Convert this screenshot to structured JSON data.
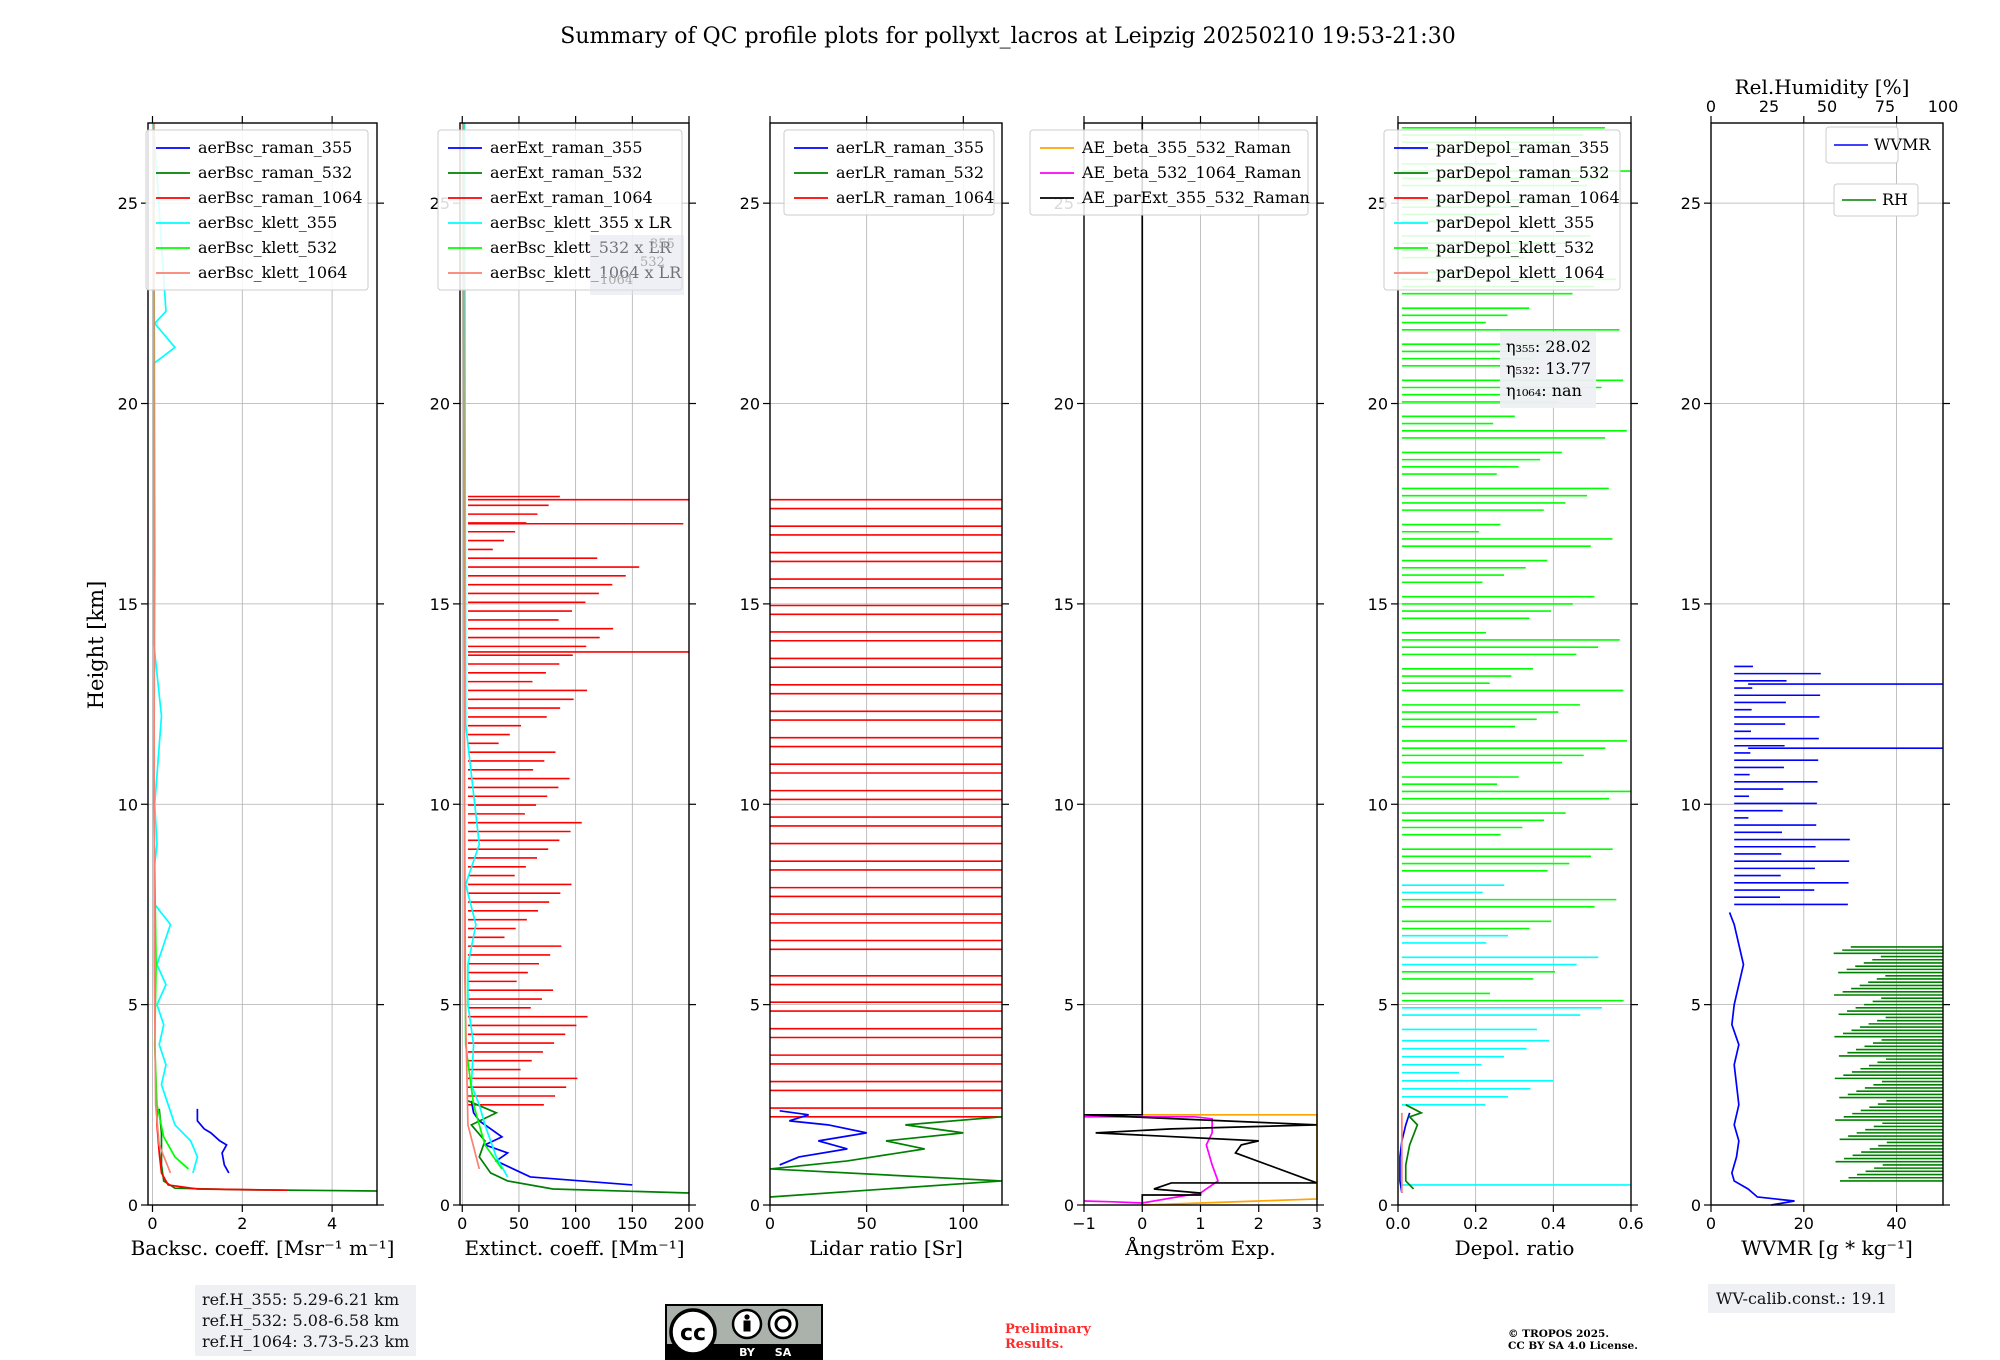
{
  "title": "Summary of QC profile plots for pollyxt_lacros at Leipzig 20250210 19:53-21:30",
  "colors": {
    "blue": "#0000ff",
    "green": "#008000",
    "red": "#ff0000",
    "cyan": "#00ffff",
    "lime": "#00ff00",
    "salmon": "#fa8072",
    "orange": "#ffa500",
    "magenta": "#ff00ff",
    "black": "#000000"
  },
  "chart_data": [
    {
      "type": "line",
      "id": "bsc",
      "xlabel": "Backsc. coeff. [Msr⁻¹ m⁻¹]",
      "ylabel": "Height [km]",
      "xlim": [
        -0.1,
        5
      ],
      "ylim": [
        0,
        27
      ],
      "xticks": [
        0,
        2,
        4
      ],
      "xtick_labels": [
        "0",
        "2",
        "4"
      ],
      "yticks": [
        0,
        5,
        10,
        15,
        20,
        25
      ],
      "ytick_labels": [
        "0",
        "5",
        "10",
        "15",
        "20",
        "25"
      ],
      "grid": true,
      "legend_position": "top-right",
      "series": [
        {
          "name": "aerBsc_raman_355",
          "color": "blue",
          "x": [
            1.7,
            1.6,
            1.55,
            1.65,
            1.5,
            1.3,
            1.15,
            1.0,
            1.0
          ],
          "y": [
            0.8,
            1.0,
            1.3,
            1.5,
            1.6,
            1.8,
            1.9,
            2.1,
            2.4
          ]
        },
        {
          "name": "aerBsc_raman_532",
          "color": "green",
          "x": [
            5.0,
            4.0,
            2.0,
            0.5,
            0.25,
            0.2,
            0.2,
            0.15
          ],
          "y": [
            0.35,
            0.36,
            0.38,
            0.42,
            0.6,
            1.0,
            1.8,
            2.4
          ]
        },
        {
          "name": "aerBsc_raman_1064",
          "color": "red",
          "x": [
            3.0,
            1.0,
            0.35,
            0.2,
            0.15,
            0.1,
            0.1
          ],
          "y": [
            0.37,
            0.4,
            0.5,
            0.8,
            1.3,
            2.0,
            2.4
          ]
        },
        {
          "name": "aerBsc_klett_355",
          "color": "cyan",
          "x": [
            0.9,
            1.0,
            0.85,
            0.5,
            0.35,
            0.2,
            0.3,
            0.15,
            0.25,
            0.1,
            0.3,
            0.1,
            0.4,
            0.05,
            0.05,
            0.1,
            0.05,
            0.2,
            0.03,
            0.03,
            0.5,
            0.05,
            0.3,
            0.02
          ],
          "y": [
            0.8,
            1.2,
            1.6,
            2.0,
            2.5,
            3.0,
            3.5,
            4.0,
            4.5,
            5.0,
            5.5,
            6.0,
            7.0,
            7.5,
            8.5,
            9.0,
            10.0,
            12.2,
            14.0,
            21.0,
            21.4,
            22.0,
            22.3,
            27.0
          ]
        },
        {
          "name": "aerBsc_klett_532",
          "color": "lime",
          "x": [
            0.8,
            0.5,
            0.25,
            0.1,
            0.05,
            0.08,
            0.03,
            0.05,
            0.03
          ],
          "y": [
            0.9,
            1.2,
            1.7,
            2.5,
            4.0,
            6.0,
            10.0,
            16.0,
            27.0
          ]
        },
        {
          "name": "aerBsc_klett_1064",
          "color": "salmon",
          "x": [
            0.4,
            0.15,
            0.07,
            0.04,
            0.03
          ],
          "y": [
            0.8,
            1.5,
            2.5,
            6.0,
            27.0
          ]
        }
      ]
    },
    {
      "type": "line",
      "id": "ext",
      "xlabel": "Extinct. coeff. [Mm⁻¹]",
      "xlim": [
        -2,
        200
      ],
      "ylim": [
        0,
        27
      ],
      "xticks": [
        0,
        50,
        100,
        150,
        200
      ],
      "xtick_labels": [
        "0",
        "50",
        "100",
        "150",
        "200"
      ],
      "yticks": [
        0,
        5,
        10,
        15,
        20,
        25
      ],
      "ytick_labels": [
        "0",
        "5",
        "10",
        "15",
        "20",
        "25"
      ],
      "grid": true,
      "legend_position": "top-right",
      "series": [
        {
          "name": "aerExt_raman_355",
          "color": "blue",
          "x": [
            150,
            60,
            45,
            30,
            40,
            20,
            35,
            25,
            15,
            10,
            8
          ],
          "y": [
            0.5,
            0.7,
            0.9,
            1.1,
            1.3,
            1.5,
            1.7,
            1.9,
            2.1,
            2.3,
            2.6
          ]
        },
        {
          "name": "aerExt_raman_532",
          "color": "green",
          "x": [
            200,
            80,
            40,
            25,
            15,
            20,
            8,
            30,
            5
          ],
          "y": [
            0.3,
            0.4,
            0.6,
            0.8,
            1.2,
            1.6,
            2.0,
            2.3,
            2.6
          ]
        },
        {
          "name": "aerExt_raman_1064",
          "color": "red",
          "x": [],
          "y": []
        },
        {
          "name": "aerBsc_klett_355 x LR",
          "color": "cyan",
          "x": [
            40,
            30,
            20,
            15,
            8,
            10,
            5,
            5,
            12,
            3,
            15,
            3,
            2
          ],
          "y": [
            0.7,
            1.2,
            2.0,
            2.5,
            3.0,
            4.0,
            5.0,
            6.0,
            7.0,
            8.0,
            9.0,
            12.0,
            27.0
          ]
        },
        {
          "name": "aerBsc_klett_532 x LR",
          "color": "lime",
          "x": [
            35,
            20,
            10,
            3,
            2,
            1
          ],
          "y": [
            0.9,
            1.5,
            2.5,
            4.0,
            10.0,
            27.0
          ]
        },
        {
          "name": "aerBsc_klett_1064 x LR",
          "color": "salmon",
          "x": [
            15,
            5,
            2,
            1
          ],
          "y": [
            0.9,
            2.0,
            6.0,
            27.0
          ]
        }
      ],
      "overlay_text": [
        "355",
        "532",
        "1064"
      ]
    },
    {
      "type": "line",
      "id": "lr",
      "xlabel": "Lidar ratio [Sr]",
      "xlim": [
        0,
        120
      ],
      "ylim": [
        0,
        27
      ],
      "xticks": [
        0,
        50,
        100
      ],
      "xtick_labels": [
        "0",
        "50",
        "100"
      ],
      "yticks": [
        0,
        5,
        10,
        15,
        20,
        25
      ],
      "ytick_labels": [
        "0",
        "5",
        "10",
        "15",
        "20",
        "25"
      ],
      "grid": true,
      "legend_position": "top-right",
      "series": [
        {
          "name": "aerLR_raman_355",
          "color": "blue",
          "x": [
            5,
            15,
            40,
            25,
            50,
            30,
            10,
            20,
            5
          ],
          "y": [
            1.0,
            1.2,
            1.4,
            1.6,
            1.8,
            2.0,
            2.1,
            2.25,
            2.35
          ]
        },
        {
          "name": "aerLR_raman_532",
          "color": "green",
          "x": [
            0,
            120,
            0,
            40,
            80,
            60,
            100,
            70,
            120
          ],
          "y": [
            0.2,
            0.6,
            0.9,
            1.1,
            1.4,
            1.6,
            1.8,
            2.0,
            2.2
          ]
        },
        {
          "name": "aerLR_raman_1064",
          "color": "red",
          "x": [],
          "y": []
        }
      ]
    },
    {
      "type": "line",
      "id": "ae",
      "xlabel": "Ångström Exp.",
      "xlim": [
        -1,
        3
      ],
      "ylim": [
        0,
        27
      ],
      "xticks": [
        -1,
        0,
        1,
        2,
        3
      ],
      "xtick_labels": [
        "−1",
        "0",
        "1",
        "2",
        "3"
      ],
      "yticks": [
        0,
        5,
        10,
        15,
        20,
        25
      ],
      "ytick_labels": [
        "0",
        "5",
        "10",
        "15",
        "20",
        "25"
      ],
      "grid": true,
      "legend_position": "top-left",
      "series": [
        {
          "name": "AE_beta_355_532_Raman",
          "color": "orange",
          "x": [
            0,
            1.0,
            2.0,
            3.0,
            3.0,
            -1.0,
            3.0
          ],
          "y": [
            0.0,
            0.05,
            0.1,
            0.15,
            2.25,
            2.25,
            2.25
          ]
        },
        {
          "name": "AE_beta_532_1064_Raman",
          "color": "magenta",
          "x": [
            -1.0,
            -0.5,
            0.0,
            1.0,
            1.3,
            1.2,
            1.1,
            1.2,
            1.2,
            0.9,
            -1.0
          ],
          "y": [
            0.1,
            0.08,
            0.05,
            0.3,
            0.6,
            1.0,
            1.5,
            1.8,
            2.15,
            2.2,
            2.2
          ]
        },
        {
          "name": "AE_parExt_355_532_Raman",
          "color": "black",
          "x": [
            0,
            0,
            1.0,
            1.0,
            0.2,
            0.5,
            3.0,
            1.6,
            1.7,
            2.0,
            -0.8,
            0.5,
            3.0,
            -1.0,
            0,
            0
          ],
          "y": [
            0.0,
            0.25,
            0.25,
            0.3,
            0.4,
            0.55,
            0.55,
            1.3,
            1.5,
            1.6,
            1.8,
            1.9,
            2.0,
            2.25,
            2.25,
            27.0
          ]
        }
      ]
    },
    {
      "type": "line",
      "id": "depol",
      "xlabel": "Depol. ratio",
      "xlim": [
        0,
        0.6
      ],
      "ylim": [
        0,
        27
      ],
      "xticks": [
        0,
        0.2,
        0.4,
        0.6
      ],
      "xtick_labels": [
        "0.0",
        "0.2",
        "0.4",
        "0.6"
      ],
      "yticks": [
        0,
        5,
        10,
        15,
        20,
        25
      ],
      "ytick_labels": [
        "0",
        "5",
        "10",
        "15",
        "20",
        "25"
      ],
      "grid": true,
      "legend_position": "top-left",
      "series": [
        {
          "name": "parDepol_raman_355",
          "color": "blue",
          "x": [
            0.01,
            0.005,
            0.005,
            0.01,
            0.02,
            0.03
          ],
          "y": [
            0.3,
            0.6,
            1.2,
            1.6,
            2.0,
            2.3
          ]
        },
        {
          "name": "parDepol_raman_532",
          "color": "green",
          "x": [
            0.04,
            0.02,
            0.02,
            0.03,
            0.05,
            0.03,
            0.06,
            0.02
          ],
          "y": [
            0.4,
            0.6,
            1.0,
            1.5,
            2.0,
            2.2,
            2.3,
            2.5
          ]
        },
        {
          "name": "parDepol_raman_1064",
          "color": "red",
          "x": [],
          "y": []
        },
        {
          "name": "parDepol_klett_355",
          "color": "cyan",
          "x": [],
          "y": []
        },
        {
          "name": "parDepol_klett_532",
          "color": "lime",
          "x": [],
          "y": []
        },
        {
          "name": "parDepol_klett_1064",
          "color": "salmon",
          "x": [
            0.01,
            0.01
          ],
          "y": [
            0.3,
            2.3
          ]
        }
      ]
    },
    {
      "type": "line",
      "id": "wv",
      "xlabel": "WVMR [g * kg⁻¹]",
      "xlim": [
        0,
        50
      ],
      "ylim": [
        0,
        27
      ],
      "xticks": [
        0,
        20,
        40
      ],
      "xtick_labels": [
        "0",
        "20",
        "40"
      ],
      "yticks": [
        0,
        5,
        10,
        15,
        20,
        25
      ],
      "ytick_labels": [
        "0",
        "5",
        "10",
        "15",
        "20",
        "25"
      ],
      "top_axis": {
        "label": "Rel.Humidity [%]",
        "xlim": [
          0,
          100
        ],
        "xticks": [
          0,
          25,
          50,
          75,
          100
        ],
        "xtick_labels": [
          "0",
          "25",
          "50",
          "75",
          "100"
        ]
      },
      "grid": true,
      "legends": [
        {
          "name": "WVMR",
          "color": "blue"
        },
        {
          "name": "RH",
          "color": "green"
        }
      ],
      "series": [
        {
          "name": "WVMR",
          "color": "blue",
          "x": [
            13,
            18,
            10,
            8,
            5,
            4.5,
            5.5,
            6,
            5,
            6,
            5.5,
            5,
            6,
            4.5,
            5,
            6,
            7,
            6,
            5,
            4
          ],
          "y": [
            0.0,
            0.1,
            0.2,
            0.4,
            0.6,
            0.8,
            1.2,
            1.6,
            2.0,
            2.5,
            3.0,
            3.5,
            4.0,
            4.5,
            5.0,
            5.5,
            6.0,
            6.5,
            7.0,
            7.3
          ]
        },
        {
          "name": "RH",
          "color": "green",
          "x": [],
          "y": []
        }
      ]
    }
  ],
  "ref_info": [
    "ref.H_355: 5.29-6.21 km",
    "ref.H_532: 5.08-6.58 km",
    "ref.H_1064: 3.73-5.23 km"
  ],
  "eta_info": [
    "η₃₅₅: 28.02",
    "η₅₃₂: 13.77",
    "η₁₀₆₄: nan"
  ],
  "wv_calib": "WV-calib.const.: 19.1",
  "license": {
    "cc": "cc",
    "by": "BY",
    "sa": "SA"
  },
  "preliminary": [
    "Preliminary",
    "Results."
  ],
  "copyright": [
    "© TROPOS 2025.",
    "CC BY SA 4.0 License."
  ]
}
